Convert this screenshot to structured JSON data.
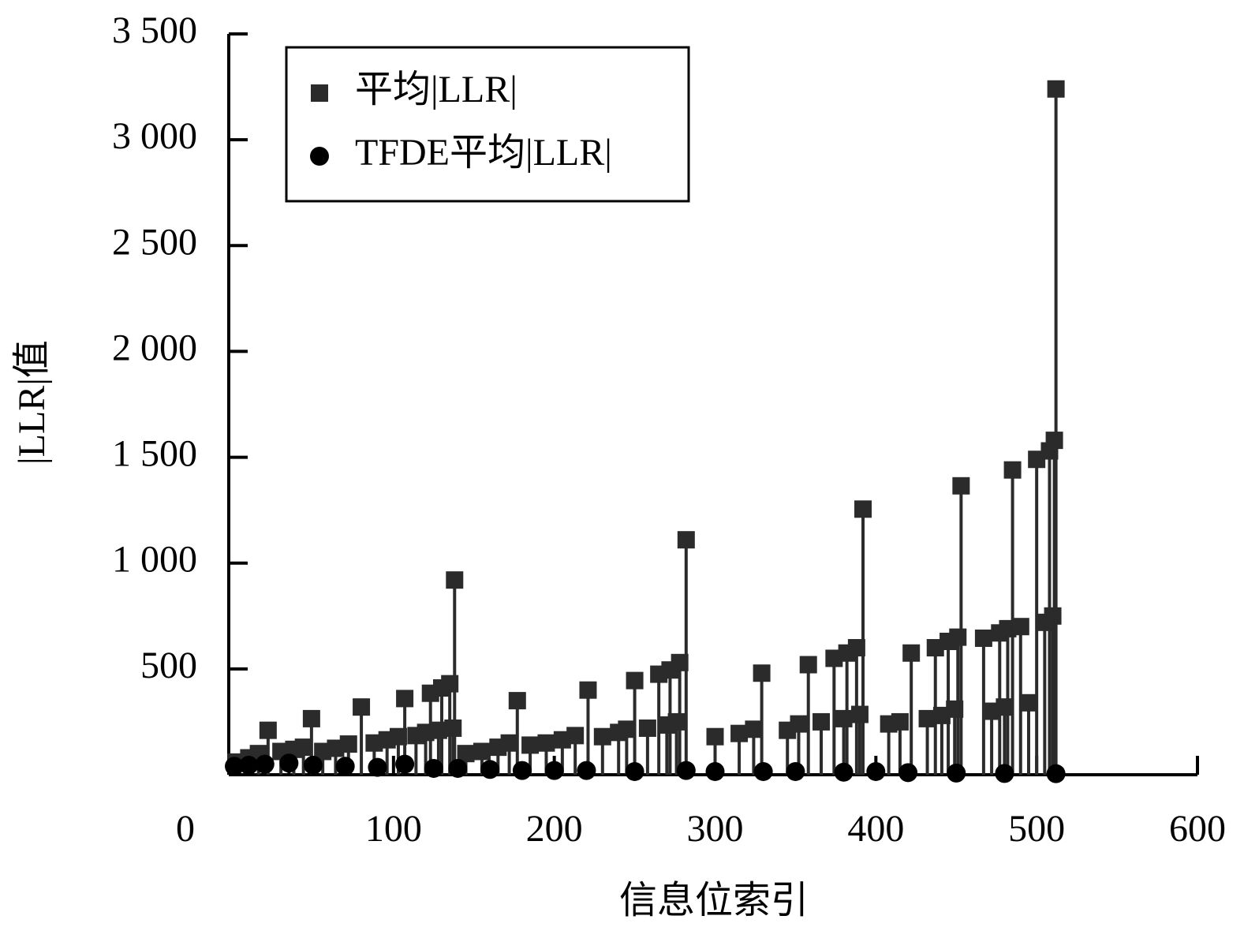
{
  "chart_data": {
    "type": "stem",
    "x_label": "信息位索引",
    "y_label": "|LLR|值",
    "xlim": [
      0,
      600
    ],
    "xticks": [
      0,
      100,
      200,
      300,
      400,
      500,
      600
    ],
    "ylim": [
      0,
      3500
    ],
    "yticks": [
      {
        "value": 500,
        "label": "500"
      },
      {
        "value": 1000,
        "label": "1 000"
      },
      {
        "value": 1500,
        "label": "1 500"
      },
      {
        "value": 2000,
        "label": "2 000"
      },
      {
        "value": 2500,
        "label": "2 500"
      },
      {
        "value": 3000,
        "label": "3 000"
      },
      {
        "value": 3500,
        "label": "3 500"
      }
    ],
    "legend": "upper left",
    "series": [
      {
        "name": "平均|LLR|",
        "color": "#2b2b2b",
        "marker": "square",
        "x": [
          2,
          10,
          16,
          22,
          30,
          38,
          44,
          49,
          56,
          64,
          72,
          80,
          88,
          96,
          103,
          107,
          114,
          120,
          123,
          128,
          130,
          135,
          137,
          138,
          145,
          155,
          165,
          172,
          177,
          185,
          195,
          205,
          213,
          221,
          230,
          240,
          245,
          250,
          258,
          265,
          270,
          272,
          276,
          278,
          282,
          300,
          315,
          324,
          329,
          345,
          352,
          358,
          366,
          374,
          380,
          382,
          388,
          390,
          392,
          408,
          415,
          422,
          432,
          437,
          441,
          445,
          449,
          451,
          453,
          467,
          472,
          477,
          480,
          482,
          485,
          490,
          495,
          500,
          505,
          508,
          510,
          511,
          512
        ],
        "values": [
          60,
          80,
          100,
          210,
          110,
          120,
          130,
          265,
          110,
          125,
          145,
          320,
          150,
          165,
          180,
          360,
          185,
          200,
          385,
          210,
          410,
          430,
          220,
          920,
          100,
          110,
          130,
          150,
          350,
          140,
          150,
          165,
          185,
          400,
          180,
          200,
          215,
          445,
          220,
          475,
          235,
          495,
          250,
          530,
          1110,
          180,
          195,
          215,
          480,
          210,
          240,
          520,
          250,
          550,
          265,
          575,
          600,
          285,
          1255,
          240,
          250,
          575,
          265,
          600,
          280,
          630,
          310,
          650,
          1365,
          645,
          300,
          670,
          320,
          690,
          1440,
          700,
          340,
          1490,
          720,
          1530,
          750,
          1580,
          3240
        ]
      },
      {
        "name": "TFDE平均|LLR|",
        "color": "#000000",
        "marker": "circle",
        "x": [
          1,
          10,
          20,
          35,
          50,
          70,
          90,
          107,
          125,
          140,
          160,
          180,
          200,
          220,
          250,
          282,
          300,
          330,
          350,
          380,
          400,
          420,
          450,
          480,
          512
        ],
        "values": [
          40,
          45,
          50,
          55,
          45,
          40,
          35,
          50,
          30,
          30,
          25,
          20,
          20,
          20,
          15,
          20,
          15,
          15,
          15,
          12,
          15,
          10,
          8,
          6,
          5
        ]
      }
    ]
  }
}
